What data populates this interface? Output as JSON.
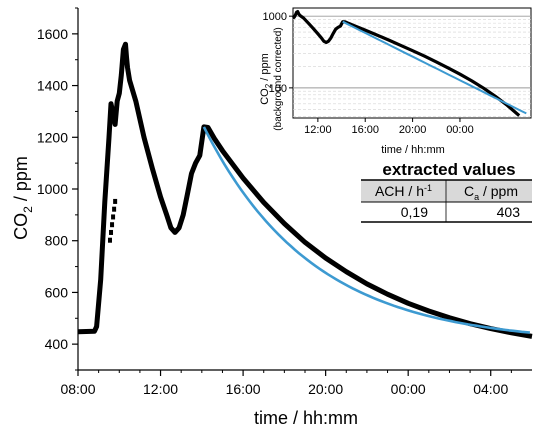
{
  "chart_data": [
    {
      "type": "line",
      "xlabel": "time / hh:mm",
      "ylabel": "CO2 / ppm",
      "xlim": [
        8,
        30
      ],
      "ylim": [
        300,
        1700
      ],
      "x_unit": "hours (clock time, values > 24 are next day)",
      "xticks": [
        8,
        12,
        16,
        20,
        24,
        28
      ],
      "xtick_labels": [
        "08:00",
        "12:00",
        "16:00",
        "20:00",
        "00:00",
        "04:00"
      ],
      "yticks": [
        400,
        600,
        800,
        1000,
        1200,
        1400,
        1600
      ],
      "ytick_labels": [
        "400",
        "600",
        "800",
        "1000",
        "1200",
        "1400",
        "1600"
      ],
      "grid": false,
      "series": [
        {
          "role": "measured",
          "color": "#000000",
          "points": [
            [
              8.0,
              448
            ],
            [
              8.8,
              450
            ],
            [
              8.9,
              468
            ],
            [
              9.1,
              650
            ],
            [
              9.3,
              950
            ],
            [
              9.5,
              1200
            ],
            [
              9.6,
              1330
            ],
            [
              9.7,
              1290
            ],
            [
              9.8,
              1250
            ],
            [
              9.9,
              1340
            ],
            [
              10.0,
              1370
            ],
            [
              10.1,
              1440
            ],
            [
              10.2,
              1540
            ],
            [
              10.3,
              1560
            ],
            [
              10.35,
              1510
            ],
            [
              10.4,
              1470
            ],
            [
              10.5,
              1420
            ],
            [
              10.8,
              1340
            ],
            [
              11.2,
              1200
            ],
            [
              11.6,
              1080
            ],
            [
              12.0,
              970
            ],
            [
              12.3,
              900
            ],
            [
              12.5,
              850
            ],
            [
              12.7,
              832
            ],
            [
              12.9,
              850
            ],
            [
              13.1,
              900
            ],
            [
              13.3,
              980
            ],
            [
              13.5,
              1060
            ],
            [
              13.7,
              1100
            ],
            [
              13.9,
              1130
            ],
            [
              14.1,
              1240
            ],
            [
              14.3,
              1238
            ],
            [
              14.6,
              1196
            ],
            [
              15.0,
              1148
            ],
            [
              16.0,
              1042
            ],
            [
              17.0,
              948
            ],
            [
              18.0,
              866
            ],
            [
              19.0,
              794
            ],
            [
              20.0,
              733
            ],
            [
              21.0,
              680
            ],
            [
              22.0,
              633
            ],
            [
              23.0,
              593
            ],
            [
              24.0,
              558
            ],
            [
              25.0,
              528
            ],
            [
              26.0,
              502
            ],
            [
              27.0,
              479
            ],
            [
              28.0,
              460
            ],
            [
              29.0,
              444
            ],
            [
              30.0,
              430
            ]
          ]
        },
        {
          "role": "fit",
          "color": "#3d9ad1",
          "ach": 0.19,
          "ca": 403,
          "c0": 1240,
          "t0": 14.1,
          "x_range": [
            14.1,
            30.0
          ]
        }
      ],
      "scattered_points": [
        [
          9.55,
          800
        ],
        [
          9.6,
          830
        ],
        [
          9.65,
          860
        ],
        [
          9.7,
          890
        ],
        [
          9.75,
          920
        ],
        [
          9.8,
          950
        ]
      ]
    },
    {
      "type": "line",
      "role": "inset",
      "xlabel": "time / hh:mm",
      "ylabel_line1": "CO2 / ppm",
      "ylabel_line2": "(background corrected)",
      "y_scale": "log",
      "xlim": [
        9.9,
        30
      ],
      "ylim": [
        38,
        1300
      ],
      "xticks": [
        12,
        16,
        20,
        24
      ],
      "xtick_labels": [
        "12:00",
        "16:00",
        "20:00",
        "00:00"
      ],
      "yticks": [
        100,
        1000
      ],
      "ytick_labels": [
        "100",
        "1000"
      ],
      "grid": true,
      "background": 403,
      "color_measured": "#000000",
      "color_fit": "#3d9ad1"
    }
  ],
  "results_table": {
    "title": "extracted values",
    "header_ach_main": "ACH / h",
    "header_ach_sup": "-1",
    "header_ca_main": "C",
    "header_ca_sub": "a",
    "header_ca_tail": " / ppm",
    "value_ach": "0,19",
    "value_ca": "403",
    "header_bg": "#d9d9d9"
  }
}
